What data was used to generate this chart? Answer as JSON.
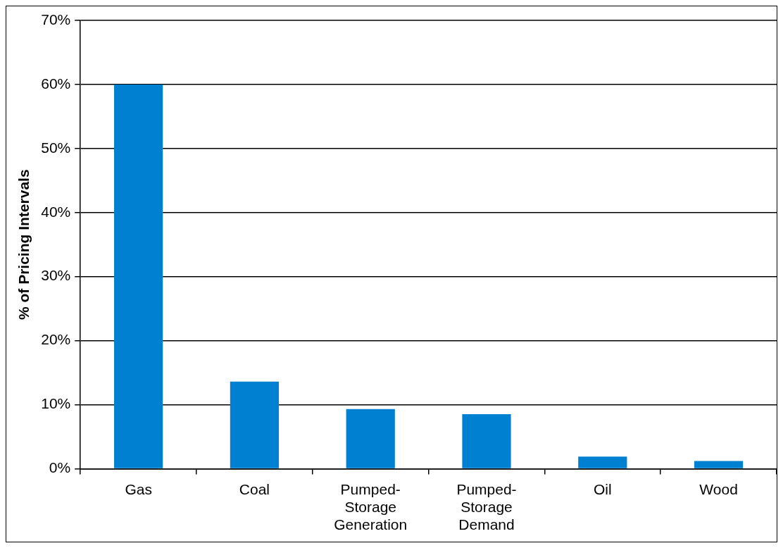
{
  "chart_data": {
    "type": "bar",
    "ylabel": "% of Pricing Intervals",
    "categories": [
      "Gas",
      "Coal",
      "Pumped-Storage Generation",
      "Pumped-Storage Demand",
      "Oil",
      "Wood"
    ],
    "values": [
      60,
      13.6,
      9.3,
      8.5,
      1.9,
      1.2
    ],
    "color": "#0080d0",
    "ylim": [
      0,
      70
    ],
    "yticks": [
      {
        "value": 0,
        "label": "0%"
      },
      {
        "value": 10,
        "label": "10%"
      },
      {
        "value": 20,
        "label": "20%"
      },
      {
        "value": 30,
        "label": "30%"
      },
      {
        "value": 40,
        "label": "40%"
      },
      {
        "value": 50,
        "label": "50%"
      },
      {
        "value": 60,
        "label": "60%"
      },
      {
        "value": 70,
        "label": "70%"
      }
    ],
    "grid": "y"
  }
}
